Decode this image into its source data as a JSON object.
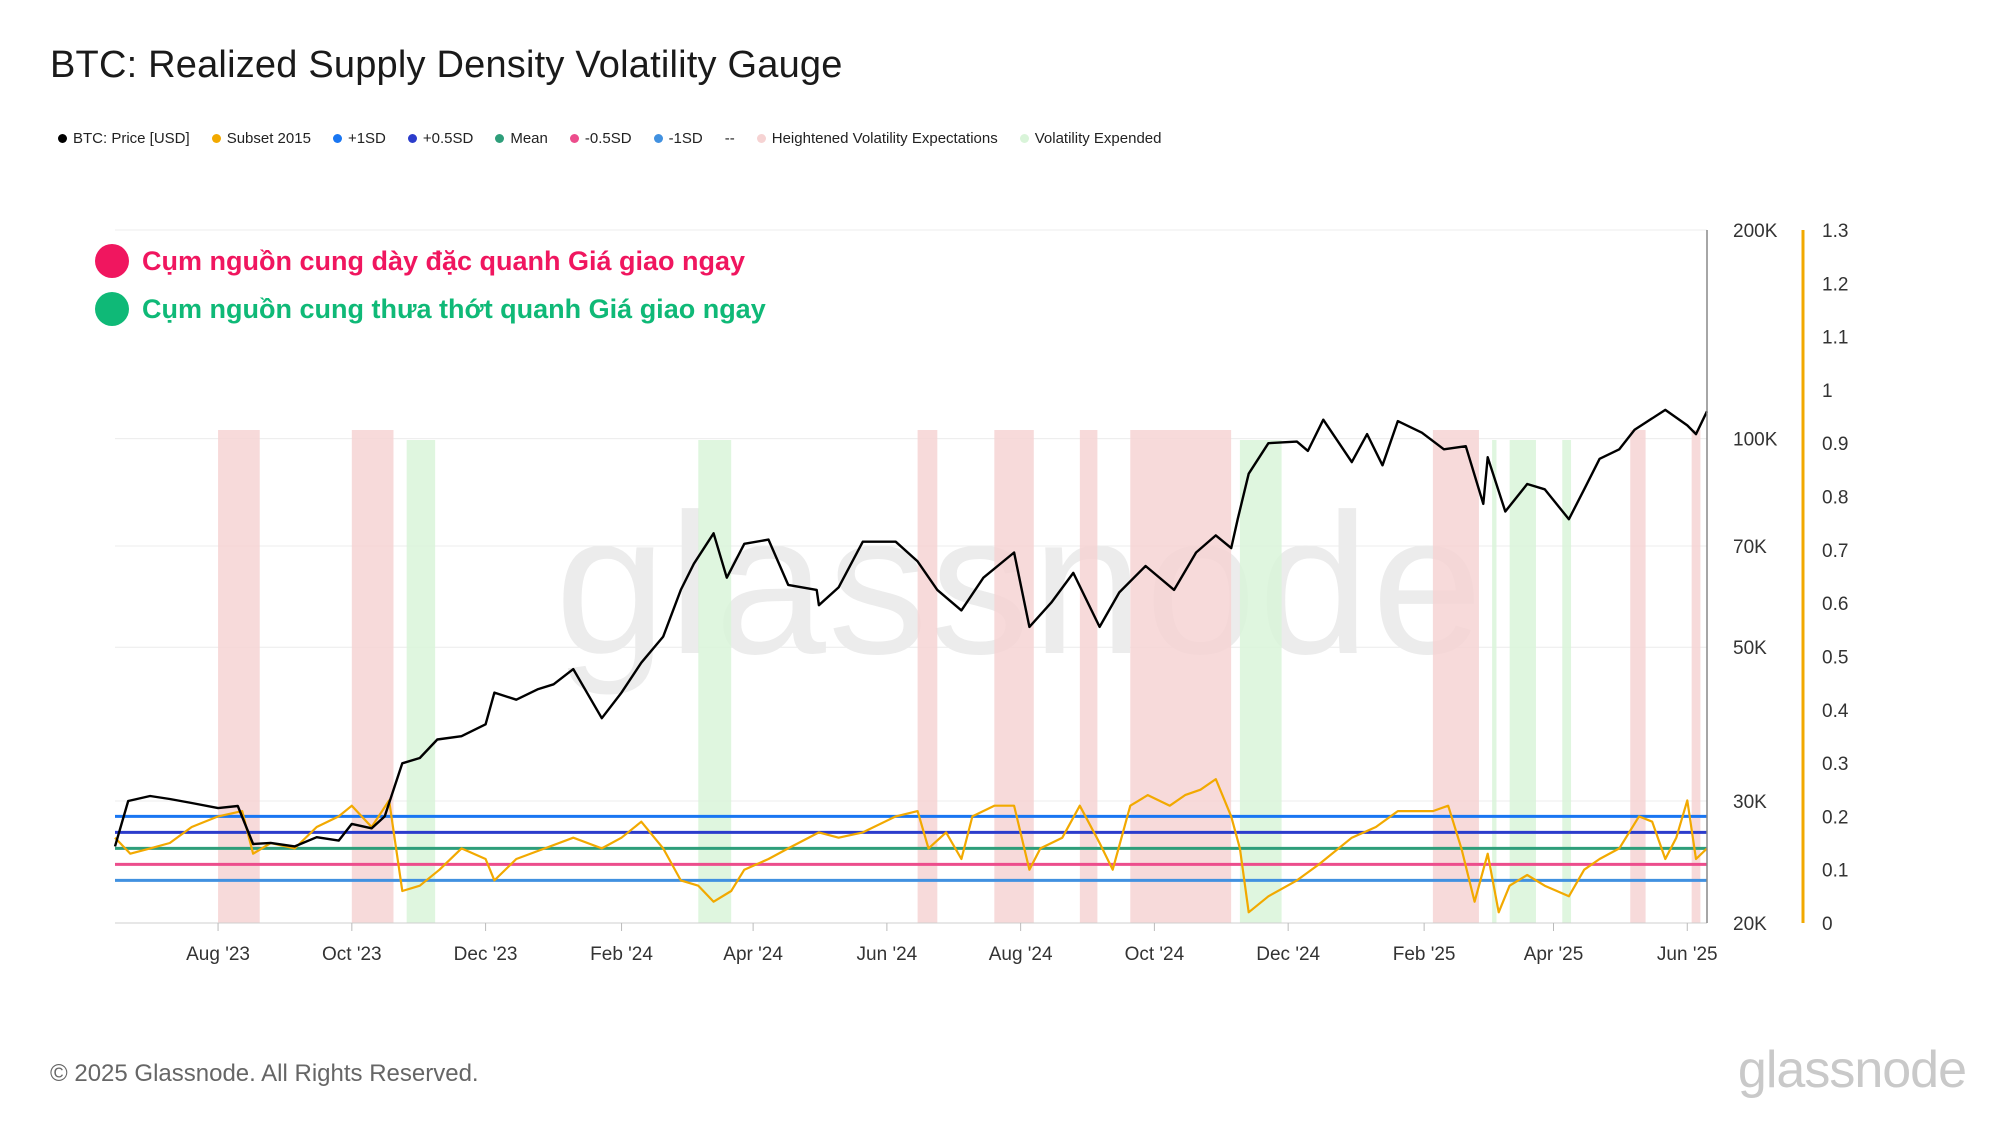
{
  "title": "BTC: Realized Supply Density Volatility Gauge",
  "legend": [
    {
      "label": "BTC: Price [USD]",
      "color": "#000000"
    },
    {
      "label": "Subset 2015",
      "color": "#f2a900"
    },
    {
      "label": "+1SD",
      "color": "#1976f2"
    },
    {
      "label": "+0.5SD",
      "color": "#2b3ccc"
    },
    {
      "label": "Mean",
      "color": "#2e9e7a"
    },
    {
      "label": "-0.5SD",
      "color": "#ec4d8c"
    },
    {
      "label": "-1SD",
      "color": "#4191e0"
    },
    {
      "label": "--",
      "color": ""
    },
    {
      "label": "Heightened Volatility Expectations",
      "color": "#f6d3d3"
    },
    {
      "label": "Volatility Expended",
      "color": "#d9f4d9"
    }
  ],
  "annotations": [
    {
      "text": "Cụm nguồn cung dày đặc quanh Giá giao ngay",
      "color": "#f0165f"
    },
    {
      "text": "Cụm nguồn cung thưa thớt quanh Giá giao ngay",
      "color": "#0fb977"
    }
  ],
  "watermark": "glassnode",
  "footer": "© 2025 Glassnode. All Rights Reserved.",
  "brand": "glassnode",
  "chart_data": {
    "type": "line",
    "x_range": [
      "2023-06-15",
      "2025-06-10"
    ],
    "x_ticks": [
      "Aug '23",
      "Oct '23",
      "Dec '23",
      "Feb '24",
      "Apr '24",
      "Jun '24",
      "Aug '24",
      "Oct '24",
      "Dec '24",
      "Feb '25",
      "Apr '25",
      "Jun '25"
    ],
    "y_left": {
      "scale": "log",
      "range": [
        20000,
        200000
      ],
      "ticks": [
        "200K",
        "100K",
        "70K",
        "50K",
        "30K",
        "20K"
      ],
      "tick_values": [
        200000,
        100000,
        70000,
        50000,
        30000,
        20000
      ]
    },
    "y_right": {
      "scale": "linear",
      "range": [
        0,
        1.3
      ],
      "ticks": [
        "1.3",
        "1.2",
        "1.1",
        "1",
        "0.9",
        "0.8",
        "0.7",
        "0.6",
        "0.5",
        "0.4",
        "0.3",
        "0.2",
        "0.1",
        "0"
      ],
      "tick_values": [
        1.3,
        1.2,
        1.1,
        1.0,
        0.9,
        0.8,
        0.7,
        0.6,
        0.5,
        0.4,
        0.3,
        0.2,
        0.1,
        0
      ]
    },
    "price_series": {
      "name": "BTC: Price [USD]",
      "axis": "left",
      "points": [
        [
          "2023-06-15",
          25800
        ],
        [
          "2023-06-21",
          30000
        ],
        [
          "2023-07-01",
          30500
        ],
        [
          "2023-07-10",
          30200
        ],
        [
          "2023-07-20",
          29800
        ],
        [
          "2023-08-01",
          29300
        ],
        [
          "2023-08-10",
          29500
        ],
        [
          "2023-08-17",
          26000
        ],
        [
          "2023-08-25",
          26100
        ],
        [
          "2023-09-05",
          25800
        ],
        [
          "2023-09-15",
          26600
        ],
        [
          "2023-09-25",
          26300
        ],
        [
          "2023-10-01",
          27800
        ],
        [
          "2023-10-10",
          27400
        ],
        [
          "2023-10-16",
          28500
        ],
        [
          "2023-10-24",
          34000
        ],
        [
          "2023-11-01",
          34600
        ],
        [
          "2023-11-09",
          36800
        ],
        [
          "2023-11-20",
          37200
        ],
        [
          "2023-12-01",
          38700
        ],
        [
          "2023-12-05",
          43000
        ],
        [
          "2023-12-15",
          42000
        ],
        [
          "2023-12-25",
          43500
        ],
        [
          "2024-01-01",
          44200
        ],
        [
          "2024-01-10",
          46500
        ],
        [
          "2024-01-23",
          39500
        ],
        [
          "2024-02-01",
          43000
        ],
        [
          "2024-02-10",
          47500
        ],
        [
          "2024-02-20",
          51800
        ],
        [
          "2024-02-28",
          60500
        ],
        [
          "2024-03-05",
          66000
        ],
        [
          "2024-03-14",
          73000
        ],
        [
          "2024-03-20",
          63000
        ],
        [
          "2024-03-28",
          70500
        ],
        [
          "2024-04-08",
          71500
        ],
        [
          "2024-04-17",
          61500
        ],
        [
          "2024-04-30",
          60500
        ],
        [
          "2024-05-01",
          57500
        ],
        [
          "2024-05-10",
          61000
        ],
        [
          "2024-05-21",
          71000
        ],
        [
          "2024-06-05",
          71000
        ],
        [
          "2024-06-15",
          66500
        ],
        [
          "2024-06-24",
          60500
        ],
        [
          "2024-07-05",
          56500
        ],
        [
          "2024-07-15",
          63000
        ],
        [
          "2024-07-29",
          68500
        ],
        [
          "2024-08-05",
          53500
        ],
        [
          "2024-08-15",
          58000
        ],
        [
          "2024-08-25",
          64000
        ],
        [
          "2024-09-06",
          53500
        ],
        [
          "2024-09-15",
          60000
        ],
        [
          "2024-09-27",
          65500
        ],
        [
          "2024-10-10",
          60500
        ],
        [
          "2024-10-20",
          68500
        ],
        [
          "2024-10-29",
          72500
        ],
        [
          "2024-11-05",
          69500
        ],
        [
          "2024-11-08",
          76500
        ],
        [
          "2024-11-13",
          89000
        ],
        [
          "2024-11-22",
          98500
        ],
        [
          "2024-12-05",
          99000
        ],
        [
          "2024-12-10",
          96000
        ],
        [
          "2024-12-17",
          106500
        ],
        [
          "2024-12-30",
          92500
        ],
        [
          "2025-01-06",
          101500
        ],
        [
          "2025-01-13",
          91500
        ],
        [
          "2025-01-20",
          106000
        ],
        [
          "2025-01-31",
          102000
        ],
        [
          "2025-02-10",
          96500
        ],
        [
          "2025-02-20",
          97500
        ],
        [
          "2025-02-28",
          80500
        ],
        [
          "2025-03-02",
          94000
        ],
        [
          "2025-03-10",
          78500
        ],
        [
          "2025-03-20",
          86000
        ],
        [
          "2025-03-28",
          84500
        ],
        [
          "2025-04-08",
          76500
        ],
        [
          "2025-04-15",
          84500
        ],
        [
          "2025-04-22",
          93500
        ],
        [
          "2025-05-01",
          96500
        ],
        [
          "2025-05-08",
          103000
        ],
        [
          "2025-05-22",
          110000
        ],
        [
          "2025-06-01",
          104500
        ],
        [
          "2025-06-05",
          101500
        ],
        [
          "2025-06-10",
          109500
        ]
      ]
    },
    "subset_series": {
      "name": "Subset 2015",
      "axis": "right",
      "points": [
        [
          "2023-06-15",
          0.16
        ],
        [
          "2023-06-22",
          0.13
        ],
        [
          "2023-07-01",
          0.14
        ],
        [
          "2023-07-10",
          0.15
        ],
        [
          "2023-07-20",
          0.18
        ],
        [
          "2023-08-01",
          0.2
        ],
        [
          "2023-08-12",
          0.21
        ],
        [
          "2023-08-17",
          0.13
        ],
        [
          "2023-08-25",
          0.15
        ],
        [
          "2023-09-05",
          0.14
        ],
        [
          "2023-09-15",
          0.18
        ],
        [
          "2023-09-25",
          0.2
        ],
        [
          "2023-10-01",
          0.22
        ],
        [
          "2023-10-10",
          0.18
        ],
        [
          "2023-10-18",
          0.23
        ],
        [
          "2023-10-24",
          0.06
        ],
        [
          "2023-11-01",
          0.07
        ],
        [
          "2023-11-10",
          0.1
        ],
        [
          "2023-11-20",
          0.14
        ],
        [
          "2023-12-01",
          0.12
        ],
        [
          "2023-12-05",
          0.08
        ],
        [
          "2023-12-15",
          0.12
        ],
        [
          "2023-12-28",
          0.14
        ],
        [
          "2024-01-10",
          0.16
        ],
        [
          "2024-01-23",
          0.14
        ],
        [
          "2024-02-01",
          0.16
        ],
        [
          "2024-02-10",
          0.19
        ],
        [
          "2024-02-20",
          0.14
        ],
        [
          "2024-02-28",
          0.08
        ],
        [
          "2024-03-07",
          0.07
        ],
        [
          "2024-03-14",
          0.04
        ],
        [
          "2024-03-22",
          0.06
        ],
        [
          "2024-03-28",
          0.1
        ],
        [
          "2024-04-08",
          0.12
        ],
        [
          "2024-04-17",
          0.14
        ],
        [
          "2024-05-01",
          0.17
        ],
        [
          "2024-05-10",
          0.16
        ],
        [
          "2024-05-21",
          0.17
        ],
        [
          "2024-06-05",
          0.2
        ],
        [
          "2024-06-15",
          0.21
        ],
        [
          "2024-06-20",
          0.14
        ],
        [
          "2024-06-28",
          0.17
        ],
        [
          "2024-07-05",
          0.12
        ],
        [
          "2024-07-10",
          0.2
        ],
        [
          "2024-07-20",
          0.22
        ],
        [
          "2024-07-29",
          0.22
        ],
        [
          "2024-08-05",
          0.1
        ],
        [
          "2024-08-10",
          0.14
        ],
        [
          "2024-08-20",
          0.16
        ],
        [
          "2024-08-28",
          0.22
        ],
        [
          "2024-09-06",
          0.15
        ],
        [
          "2024-09-12",
          0.1
        ],
        [
          "2024-09-20",
          0.22
        ],
        [
          "2024-09-28",
          0.24
        ],
        [
          "2024-10-08",
          0.22
        ],
        [
          "2024-10-15",
          0.24
        ],
        [
          "2024-10-22",
          0.25
        ],
        [
          "2024-10-29",
          0.27
        ],
        [
          "2024-11-05",
          0.2
        ],
        [
          "2024-11-09",
          0.14
        ],
        [
          "2024-11-13",
          0.02
        ],
        [
          "2024-11-22",
          0.05
        ],
        [
          "2024-12-05",
          0.08
        ],
        [
          "2024-12-15",
          0.11
        ],
        [
          "2024-12-30",
          0.16
        ],
        [
          "2025-01-10",
          0.18
        ],
        [
          "2025-01-20",
          0.21
        ],
        [
          "2025-02-05",
          0.21
        ],
        [
          "2025-02-12",
          0.22
        ],
        [
          "2025-02-18",
          0.14
        ],
        [
          "2025-02-24",
          0.04
        ],
        [
          "2025-03-02",
          0.13
        ],
        [
          "2025-03-07",
          0.02
        ],
        [
          "2025-03-12",
          0.07
        ],
        [
          "2025-03-20",
          0.09
        ],
        [
          "2025-03-28",
          0.07
        ],
        [
          "2025-04-08",
          0.05
        ],
        [
          "2025-04-15",
          0.1
        ],
        [
          "2025-04-22",
          0.12
        ],
        [
          "2025-05-01",
          0.14
        ],
        [
          "2025-05-10",
          0.2
        ],
        [
          "2025-05-16",
          0.19
        ],
        [
          "2025-05-22",
          0.12
        ],
        [
          "2025-05-27",
          0.16
        ],
        [
          "2025-06-01",
          0.23
        ],
        [
          "2025-06-05",
          0.12
        ],
        [
          "2025-06-10",
          0.14
        ]
      ]
    },
    "bands": [
      {
        "name": "+1SD",
        "axis": "right",
        "value": 0.2,
        "color": "#1976f2"
      },
      {
        "name": "+0.5SD",
        "axis": "right",
        "value": 0.17,
        "color": "#2b3ccc"
      },
      {
        "name": "Mean",
        "axis": "right",
        "value": 0.14,
        "color": "#2e9e7a"
      },
      {
        "name": "-0.5SD",
        "axis": "right",
        "value": 0.11,
        "color": "#ec4d8c"
      },
      {
        "name": "-1SD",
        "axis": "right",
        "value": 0.08,
        "color": "#4191e0"
      }
    ],
    "regions": [
      {
        "type": "Heightened Volatility Expectations",
        "start": "2023-08-01",
        "end": "2023-08-20"
      },
      {
        "type": "Heightened Volatility Expectations",
        "start": "2023-10-01",
        "end": "2023-10-20"
      },
      {
        "type": "Volatility Expended",
        "start": "2023-10-26",
        "end": "2023-11-08"
      },
      {
        "type": "Volatility Expended",
        "start": "2024-03-07",
        "end": "2024-03-22"
      },
      {
        "type": "Heightened Volatility Expectations",
        "start": "2024-06-15",
        "end": "2024-06-24"
      },
      {
        "type": "Heightened Volatility Expectations",
        "start": "2024-07-20",
        "end": "2024-08-07"
      },
      {
        "type": "Heightened Volatility Expectations",
        "start": "2024-08-28",
        "end": "2024-09-05"
      },
      {
        "type": "Heightened Volatility Expectations",
        "start": "2024-09-20",
        "end": "2024-11-05"
      },
      {
        "type": "Volatility Expended",
        "start": "2024-11-09",
        "end": "2024-11-28"
      },
      {
        "type": "Heightened Volatility Expectations",
        "start": "2025-02-05",
        "end": "2025-02-26"
      },
      {
        "type": "Volatility Expended",
        "start": "2025-03-04",
        "end": "2025-03-06"
      },
      {
        "type": "Volatility Expended",
        "start": "2025-03-12",
        "end": "2025-03-24"
      },
      {
        "type": "Volatility Expended",
        "start": "2025-04-05",
        "end": "2025-04-09"
      },
      {
        "type": "Heightened Volatility Expectations",
        "start": "2025-05-06",
        "end": "2025-05-13"
      },
      {
        "type": "Heightened Volatility Expectations",
        "start": "2025-06-03",
        "end": "2025-06-07"
      }
    ]
  }
}
